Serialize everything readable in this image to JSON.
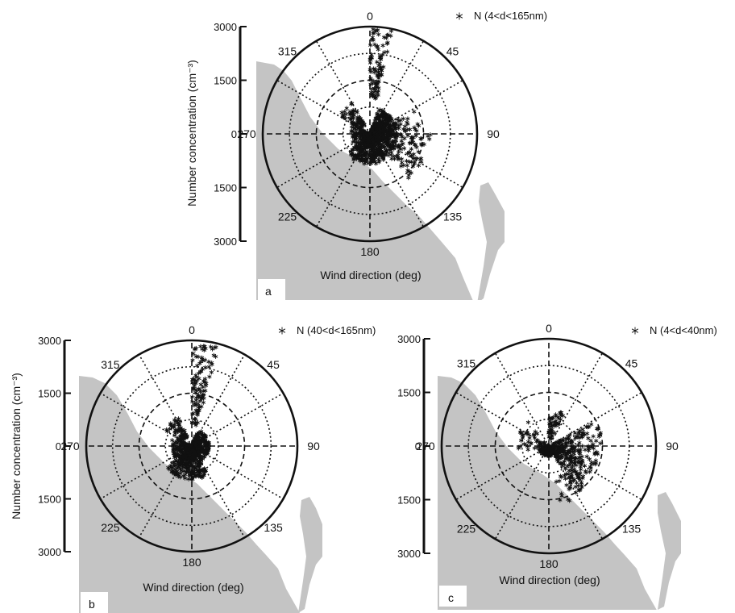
{
  "figure": {
    "ylabel": "Number concentration (cm⁻³)",
    "xlabel": "Wind direction (deg)"
  },
  "colors": {
    "land": "#c4c4c4",
    "marker": "#111111",
    "grid": "#111111",
    "background": "#ffffff"
  },
  "chart_data": [
    {
      "type": "scatter",
      "panel": "a",
      "projection": "polar",
      "legend": "N (4<d<165nm)",
      "legend_position": "top-right",
      "xlabel": "Wind direction (deg)",
      "direction_labels": [
        "0",
        "45",
        "90",
        "135",
        "180",
        "225",
        "270",
        "315"
      ],
      "radius_ticks": [
        "3000",
        "1500",
        "0",
        "1500",
        "3000"
      ],
      "rlim": [
        0,
        3000
      ],
      "grid": true,
      "series": [
        {
          "name": "N (4<d<165nm)",
          "clusters": [
            {
              "theta": [
                0,
                12
              ],
              "r": [
                1000,
                2950
              ],
              "n": 95
            },
            {
              "theta": [
                300,
                330
              ],
              "r": [
                300,
                1000
              ],
              "n": 70
            },
            {
              "theta": [
                20,
                150
              ],
              "r": [
                0,
                750
              ],
              "n": 520
            },
            {
              "theta": [
                150,
                230
              ],
              "r": [
                0,
                850
              ],
              "n": 320
            },
            {
              "theta": [
                230,
                300
              ],
              "r": [
                0,
                550
              ],
              "n": 110
            },
            {
              "theta": [
                90,
                140
              ],
              "r": [
                700,
                1700
              ],
              "n": 90
            },
            {
              "theta": [
                60,
                90
              ],
              "r": [
                700,
                1400
              ],
              "n": 30
            }
          ]
        }
      ]
    },
    {
      "type": "scatter",
      "panel": "b",
      "projection": "polar",
      "legend": "N (40<d<165nm)",
      "legend_position": "top-right",
      "xlabel": "Wind direction (deg)",
      "direction_labels": [
        "0",
        "45",
        "90",
        "135",
        "180",
        "225",
        "270",
        "315"
      ],
      "radius_ticks": [
        "3000",
        "1500",
        "0",
        "1500",
        "3000"
      ],
      "rlim": [
        0,
        3000
      ],
      "grid": true,
      "series": [
        {
          "name": "N (40<d<165nm)",
          "clusters": [
            {
              "theta": [
                0,
                15
              ],
              "r": [
                600,
                2950
              ],
              "n": 110
            },
            {
              "theta": [
                300,
                335
              ],
              "r": [
                300,
                900
              ],
              "n": 70
            },
            {
              "theta": [
                20,
                150
              ],
              "r": [
                0,
                500
              ],
              "n": 300
            },
            {
              "theta": [
                150,
                230
              ],
              "r": [
                0,
                950
              ],
              "n": 360
            },
            {
              "theta": [
                230,
                300
              ],
              "r": [
                0,
                600
              ],
              "n": 110
            }
          ]
        }
      ]
    },
    {
      "type": "scatter",
      "panel": "c",
      "projection": "polar",
      "legend": "N (4<d<40nm)",
      "legend_position": "top-right",
      "xlabel": "Wind direction (deg)",
      "direction_labels": [
        "0",
        "45",
        "90",
        "135",
        "180",
        "225",
        "270",
        "315"
      ],
      "radius_ticks": [
        "3000",
        "1500",
        "0",
        "1500",
        "3000"
      ],
      "rlim": [
        0,
        3000
      ],
      "grid": true,
      "series": [
        {
          "name": "N (4<d<40nm)",
          "clusters": [
            {
              "theta": [
                0,
                25
              ],
              "r": [
                200,
                1000
              ],
              "n": 50
            },
            {
              "theta": [
                90,
                150
              ],
              "r": [
                100,
                1400
              ],
              "n": 220
            },
            {
              "theta": [
                60,
                90
              ],
              "r": [
                100,
                1500
              ],
              "n": 70
            },
            {
              "theta": [
                150,
                260
              ],
              "r": [
                0,
                300
              ],
              "n": 120
            },
            {
              "theta": [
                260,
                320
              ],
              "r": [
                0,
                900
              ],
              "n": 50
            },
            {
              "theta": [
                140,
                170
              ],
              "r": [
                900,
                1700
              ],
              "n": 25
            }
          ]
        }
      ]
    }
  ]
}
